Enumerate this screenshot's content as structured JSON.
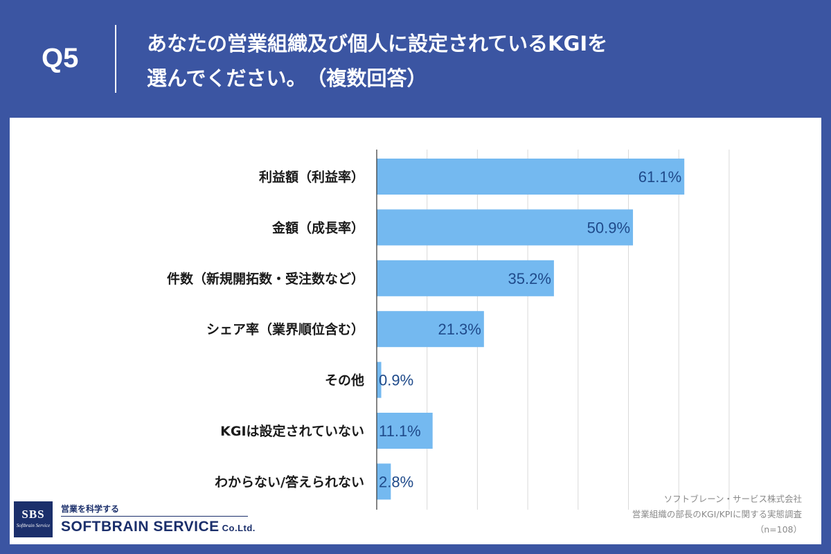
{
  "header": {
    "question_number": "Q5",
    "title_line1": "あなたの営業組織及び個人に設定されているKGIを",
    "title_line2": "選んでください。　（複数回答）"
  },
  "chart_data": {
    "type": "bar",
    "orientation": "horizontal",
    "categories": [
      "利益額（利益率）",
      "金額（成長率）",
      "件数（新規開拓数・受注数など）",
      "シェア率（業界順位含む）",
      "その他",
      "KGIは設定されていない",
      "わからない/答えられない"
    ],
    "values": [
      61.1,
      50.9,
      35.2,
      21.3,
      0.9,
      11.1,
      2.8
    ],
    "value_labels": [
      "61.1%",
      "50.9%",
      "35.2%",
      "21.3%",
      "0.9%",
      "11.1%",
      "2.8%"
    ],
    "xlim": [
      0,
      70
    ],
    "grid_step": 10,
    "grid": true,
    "bar_color": "#74b9f0"
  },
  "footer": {
    "source_company": "ソフトブレーン・サービス株式会社",
    "source_survey": "営業組織の部長のKGI/KPIに関する実態調査",
    "sample_size": "（n=108）"
  },
  "logo": {
    "abbr": "SBS",
    "script": "Softbrain Service",
    "tagline": "営業を科学する",
    "company_name": "SOFTBRAIN SERVICE",
    "company_suffix": "Co.Ltd."
  },
  "colors": {
    "background": "#3b55a2",
    "panel": "#ffffff",
    "bar": "#74b9f0",
    "value_text": "#1f4a8a",
    "logo": "#1b2f6b"
  }
}
